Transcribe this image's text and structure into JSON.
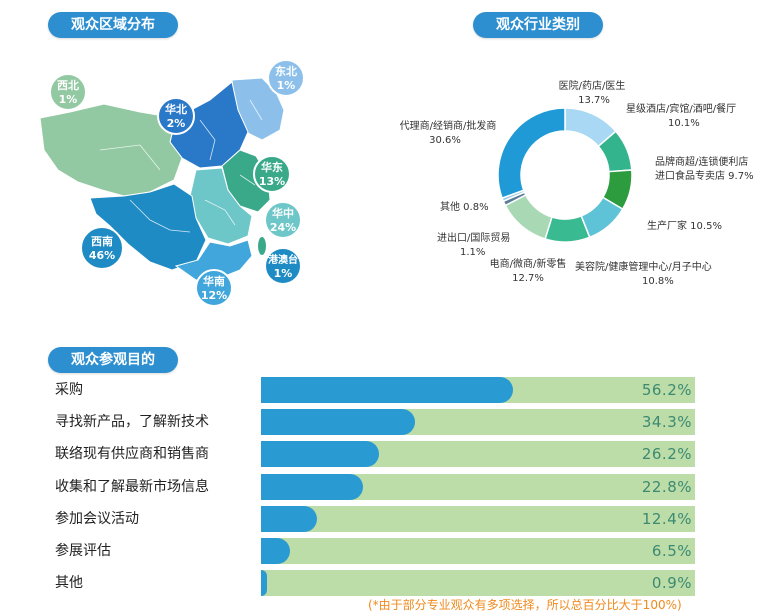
{
  "region": {
    "title": "观众区域分布",
    "badges": [
      {
        "name": "西北",
        "value": "1%"
      },
      {
        "name": "东北",
        "value": "1%"
      },
      {
        "name": "华北",
        "value": "2%"
      },
      {
        "name": "华东",
        "value": "13%"
      },
      {
        "name": "华中",
        "value": "24%"
      },
      {
        "name": "西南",
        "value": "46%"
      },
      {
        "name": "港澳台",
        "value": "1%"
      },
      {
        "name": "华南",
        "value": "12%"
      }
    ]
  },
  "industry": {
    "title": "观众行业类别"
  },
  "purpose": {
    "title": "观众参观目的",
    "note": "(*由于部分专业观众有多项选择，所以总百分比大于100%)"
  },
  "chart_data": [
    {
      "type": "pie",
      "title": "观众行业类别",
      "series": [
        {
          "label": "医院/药店/医生",
          "value": 13.7,
          "display": "13.7%",
          "color": "#a8d8f4"
        },
        {
          "label": "星级酒店/宾馆/酒吧/餐厅",
          "value": 10.1,
          "display": "10.1%",
          "color": "#33b48d"
        },
        {
          "label": "品牌商超/连锁便利店 进口食品专卖店",
          "value": 9.7,
          "display": "9.7%",
          "color": "#2c9c3f"
        },
        {
          "label": "生产厂家",
          "value": 10.5,
          "display": "10.5%",
          "color": "#5fc3d8"
        },
        {
          "label": "美容院/健康管理中心/月子中心",
          "value": 10.8,
          "display": "10.8%",
          "color": "#3aba90"
        },
        {
          "label": "电商/微商/新零售",
          "value": 12.7,
          "display": "12.7%",
          "color": "#a8d8b4"
        },
        {
          "label": "进出口/国际贸易",
          "value": 1.1,
          "display": "1.1%",
          "color": "#5b7e98"
        },
        {
          "label": "其他",
          "value": 0.8,
          "display": "0.8%",
          "color": "#9fcbe8"
        },
        {
          "label": "代理商/经销商/批发商",
          "value": 30.6,
          "display": "30.6%",
          "color": "#1f9ad6"
        }
      ]
    },
    {
      "type": "bar",
      "title": "观众参观目的",
      "categories": [
        "采购",
        "寻找新产品，了解新技术",
        "联络现有供应商和销售商",
        "收集和了解最新市场信息",
        "参加会议活动",
        "参展评估",
        "其他"
      ],
      "values": [
        56.2,
        34.3,
        26.2,
        22.8,
        12.4,
        6.5,
        0.9
      ],
      "value_labels": [
        "56.2%",
        "34.3%",
        "26.2%",
        "22.8%",
        "12.4%",
        "6.5%",
        "0.9%"
      ],
      "xlim": [
        0,
        100
      ]
    }
  ]
}
